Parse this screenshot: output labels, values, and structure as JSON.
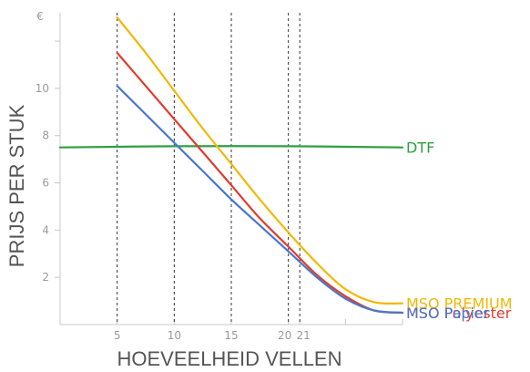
{
  "chart_data": {
    "type": "line",
    "title": "",
    "xlabel": "HOEVEELHEID VELLEN",
    "ylabel": "PRIJS PER STUK",
    "y_unit": "€",
    "xlim": [
      0,
      30
    ],
    "ylim": [
      0,
      13.2
    ],
    "x_ticks": [
      {
        "value": 5,
        "label": "5"
      },
      {
        "value": 10,
        "label": "10"
      },
      {
        "value": 15,
        "label": "15"
      },
      {
        "value": 20,
        "label": "20"
      },
      {
        "value": 21,
        "label": "21"
      }
    ],
    "x_tick_marks_unlabeled": [
      25,
      30
    ],
    "y_ticks": [
      {
        "value": 2,
        "label": "2"
      },
      {
        "value": 4,
        "label": "4"
      },
      {
        "value": 6,
        "label": "6"
      },
      {
        "value": 8,
        "label": "8"
      },
      {
        "value": 10,
        "label": "10"
      }
    ],
    "y_tick_marks_unlabeled": [
      12
    ],
    "vertical_dashed_lines_at_x": [
      5,
      10,
      15,
      20,
      21
    ],
    "grid": false,
    "legend": "series labels at right end of lines",
    "series": [
      {
        "name": "DTF",
        "color": "#2ea043",
        "points": [
          [
            0,
            7.5
          ],
          [
            10,
            7.55
          ],
          [
            20,
            7.55
          ],
          [
            30,
            7.5
          ]
        ]
      },
      {
        "name": "MSO PREMIUM",
        "color": "#f2b705",
        "points": [
          [
            5,
            13.0
          ],
          [
            7.5,
            11.5
          ],
          [
            10,
            9.9
          ],
          [
            12.5,
            8.3
          ],
          [
            15,
            6.8
          ],
          [
            17.5,
            5.3
          ],
          [
            20,
            3.9
          ],
          [
            22.5,
            2.6
          ],
          [
            25,
            1.5
          ],
          [
            27.5,
            0.95
          ],
          [
            30,
            0.9
          ]
        ]
      },
      {
        "name": "MSO Polyester",
        "color": "#e23b2e",
        "points": [
          [
            5,
            11.5
          ],
          [
            7.5,
            10.1
          ],
          [
            10,
            8.7
          ],
          [
            12.5,
            7.3
          ],
          [
            15,
            5.9
          ],
          [
            17.5,
            4.5
          ],
          [
            20,
            3.3
          ],
          [
            22.5,
            2.1
          ],
          [
            25,
            1.2
          ],
          [
            27.5,
            0.6
          ],
          [
            30,
            0.5
          ]
        ]
      },
      {
        "name": "MSO Papier",
        "color": "#4a78c8",
        "points": [
          [
            5,
            10.1
          ],
          [
            7.5,
            8.9
          ],
          [
            10,
            7.7
          ],
          [
            12.5,
            6.5
          ],
          [
            15,
            5.3
          ],
          [
            17.5,
            4.2
          ],
          [
            20,
            3.1
          ],
          [
            22.5,
            2.0
          ],
          [
            25,
            1.1
          ],
          [
            27.5,
            0.6
          ],
          [
            30,
            0.5
          ]
        ]
      }
    ]
  }
}
